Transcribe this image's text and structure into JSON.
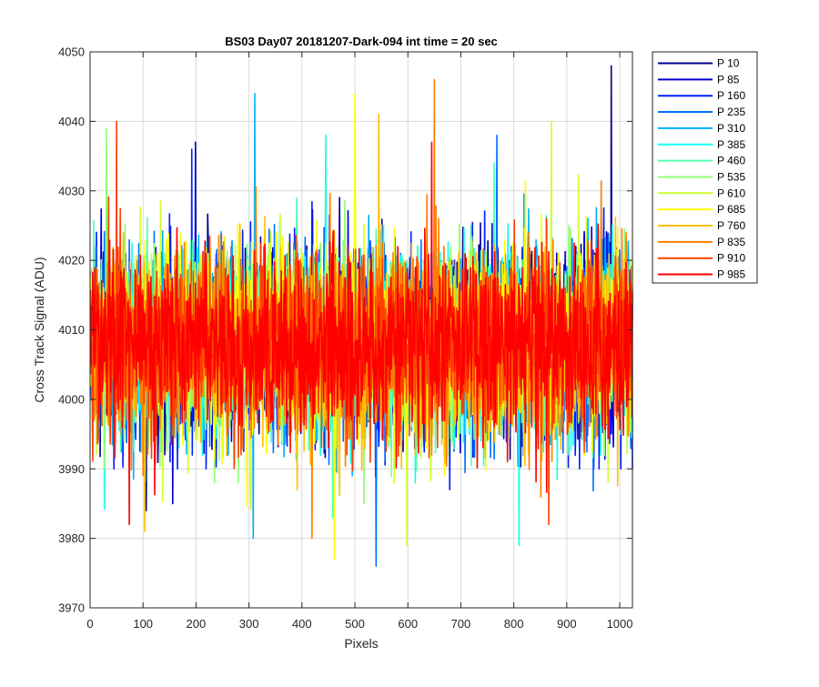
{
  "chart_data": {
    "type": "line",
    "title": "BS03 Day07 20181207-Dark-094 int time = 20 sec",
    "xlabel": "Pixels",
    "ylabel": "Cross Track Signal (ADU)",
    "xlim": [
      0,
      1024
    ],
    "ylim": [
      3970,
      4050
    ],
    "x_ticks": [
      0,
      100,
      200,
      300,
      400,
      500,
      600,
      700,
      800,
      900,
      1000
    ],
    "y_ticks": [
      3970,
      3980,
      3990,
      4000,
      4010,
      4020,
      4030,
      4040,
      4050
    ],
    "grid": true,
    "legend_position": "outside-top-right",
    "noise_model": {
      "mean": 4008,
      "sd": 6.5,
      "n_points": 1024
    },
    "series": [
      {
        "name": "P 10",
        "color": "#00008f",
        "mean": 4008,
        "min": 3984,
        "max": 4048
      },
      {
        "name": "P 85",
        "color": "#0000cf",
        "mean": 4008,
        "min": 3985,
        "max": 4037
      },
      {
        "name": "P 160",
        "color": "#0020ff",
        "mean": 4008,
        "min": 3987,
        "max": 4036
      },
      {
        "name": "P 235",
        "color": "#0070ff",
        "mean": 4008,
        "min": 3976,
        "max": 4038
      },
      {
        "name": "P 310",
        "color": "#00b0ff",
        "mean": 4008,
        "min": 3980,
        "max": 4044
      },
      {
        "name": "P 385",
        "color": "#10ffef",
        "mean": 4008,
        "min": 3979,
        "max": 4038
      },
      {
        "name": "P 460",
        "color": "#50ffaf",
        "mean": 4008,
        "min": 3983,
        "max": 4034
      },
      {
        "name": "P 535",
        "color": "#8fff70",
        "mean": 4008,
        "min": 3985,
        "max": 4039
      },
      {
        "name": "P 610",
        "color": "#cfff30",
        "mean": 4008,
        "min": 3979,
        "max": 4040
      },
      {
        "name": "P 685",
        "color": "#ffff00",
        "mean": 4008,
        "min": 3977,
        "max": 4044
      },
      {
        "name": "P 760",
        "color": "#ffbf00",
        "mean": 4008,
        "min": 3981,
        "max": 4041
      },
      {
        "name": "P 835",
        "color": "#ff7f00",
        "mean": 4008,
        "min": 3980,
        "max": 4046
      },
      {
        "name": "P 910",
        "color": "#ff4000",
        "mean": 4008,
        "min": 3982,
        "max": 4040
      },
      {
        "name": "P 985",
        "color": "#ff0000",
        "mean": 4008,
        "min": 3982,
        "max": 4037
      }
    ]
  }
}
